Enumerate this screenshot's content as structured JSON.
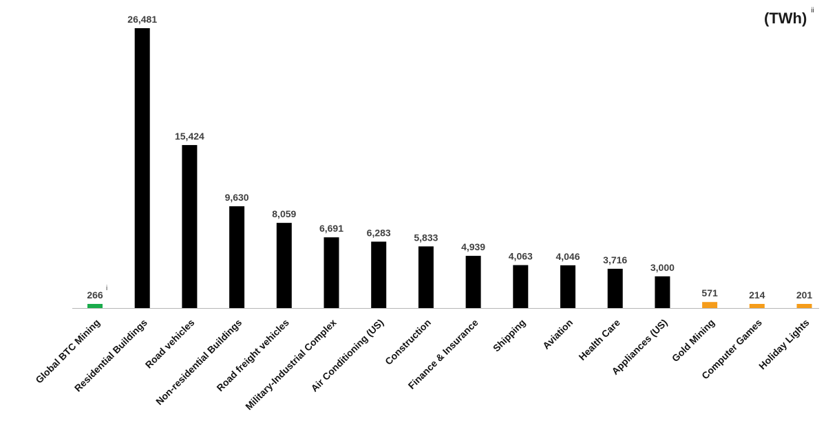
{
  "unit_label": {
    "text": "(TWh)",
    "footnote": "ii"
  },
  "chart_data": {
    "type": "bar",
    "categories": [
      "Global BTC Mining",
      "Residential Buildings",
      "Road vehicles",
      "Non-residential Buildings",
      "Road freight vehicles",
      "Military-Industrial Complex",
      "Air Conditioning (US)",
      "Construction",
      "Finance & Insurance",
      "Shipping",
      "Aviation",
      "Health Care",
      "Appliances (US)",
      "Gold Mining",
      "Computer Games",
      "Holiday Lights"
    ],
    "values": [
      266,
      26481,
      15424,
      9630,
      8059,
      6691,
      6283,
      5833,
      4939,
      4063,
      4046,
      3716,
      3000,
      571,
      214,
      201
    ],
    "value_labels": [
      "266",
      "26,481",
      "15,424",
      "9,630",
      "8,059",
      "6,691",
      "6,283",
      "5,833",
      "4,939",
      "4,063",
      "4,046",
      "3,716",
      "3,000",
      "571",
      "214",
      "201"
    ],
    "annotations": [
      {
        "category": "Global BTC Mining",
        "text": "i"
      }
    ],
    "colors": [
      "#1aab4b",
      "#000000",
      "#000000",
      "#000000",
      "#000000",
      "#000000",
      "#000000",
      "#000000",
      "#000000",
      "#000000",
      "#000000",
      "#000000",
      "#000000",
      "#f59c1a",
      "#f59c1a",
      "#f59c1a"
    ],
    "title": "",
    "xlabel": "",
    "ylabel": "",
    "ylim": [
      0,
      26481
    ],
    "grid": false,
    "legend": "none"
  }
}
